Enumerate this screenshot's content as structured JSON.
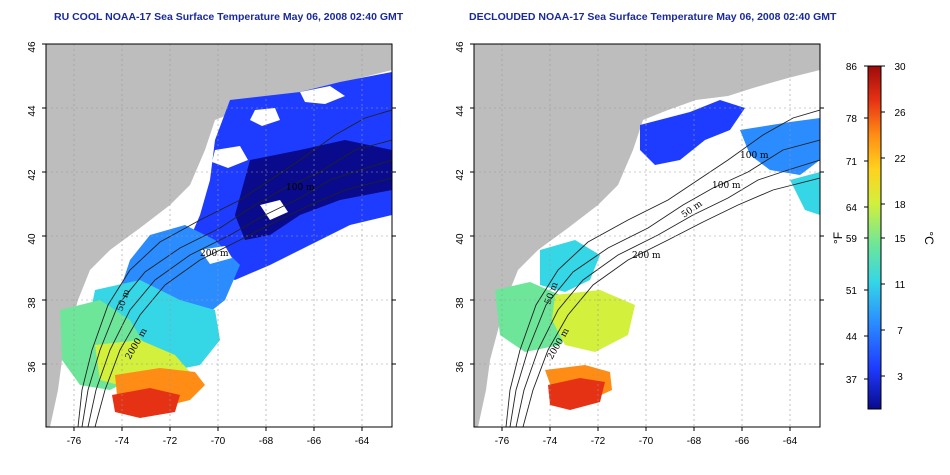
{
  "panels": [
    {
      "title": "RU COOL NOAA-17 Sea Surface Temperature May 06, 2008 02:40 GMT",
      "contour_labels": [
        "100 m",
        "200 m",
        "50 m",
        "2000 m"
      ]
    },
    {
      "title": "DECLOUDED NOAA-17 Sea Surface Temperature May 06, 2008 02:40 GMT",
      "contour_labels": [
        "100 m",
        "100 m",
        "50 m",
        "200 m",
        "50 m",
        "2000 m"
      ]
    }
  ],
  "axes": {
    "lat_ticks": [
      "46",
      "44",
      "42",
      "40",
      "38",
      "36"
    ],
    "lon_ticks": [
      "-76",
      "-74",
      "-72",
      "-70",
      "-68",
      "-66",
      "-64"
    ]
  },
  "colorbar": {
    "f_ticks": [
      "86",
      "78",
      "71",
      "64",
      "59",
      "51",
      "44",
      "37"
    ],
    "c_ticks": [
      "30",
      "26",
      "22",
      "18",
      "15",
      "11",
      "7",
      "3"
    ],
    "f_unit": "°F",
    "c_unit": "°C",
    "colors": [
      "#0a0a8c",
      "#1e3cff",
      "#2a8cff",
      "#35d6e6",
      "#6ee69a",
      "#d2f03c",
      "#ffd21e",
      "#ff8c14",
      "#e63214",
      "#9e0a0a"
    ]
  },
  "colors": {
    "land": "#bdbdbd",
    "ocean_nodata": "#ffffff",
    "title": "#1a2a9a",
    "grid": "#9a9a9a"
  }
}
